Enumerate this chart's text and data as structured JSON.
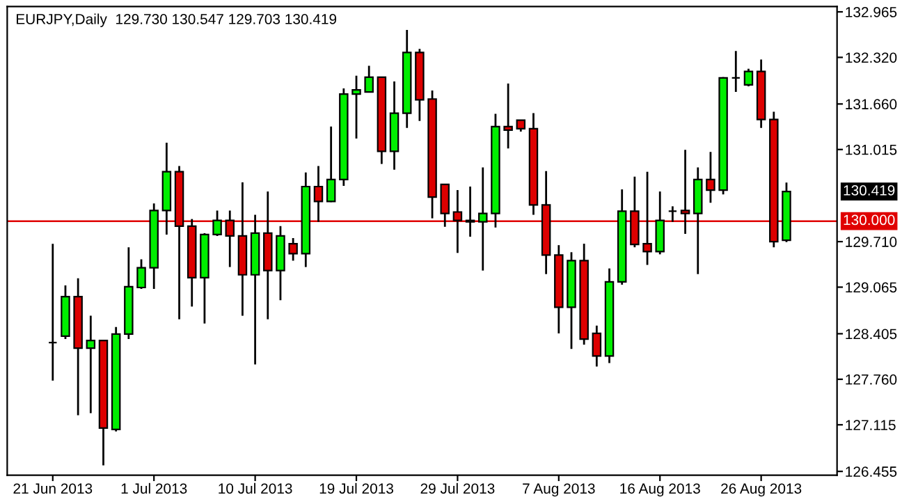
{
  "chart_data": {
    "type": "candlestick",
    "title": "EURJPY,Daily  129.730 130.547 129.703 130.419",
    "categories": [
      "21 Jun 2013",
      null,
      null,
      null,
      null,
      null,
      null,
      null,
      "1 Jul 2013",
      null,
      null,
      null,
      null,
      null,
      null,
      null,
      "10 Jul 2013",
      null,
      null,
      null,
      null,
      null,
      null,
      null,
      "19 Jul 2013",
      null,
      null,
      null,
      null,
      null,
      null,
      null,
      "29 Jul 2013",
      null,
      null,
      null,
      null,
      null,
      null,
      null,
      "7 Aug 2013",
      null,
      null,
      null,
      null,
      null,
      null,
      null,
      "16 Aug 2013",
      null,
      null,
      null,
      null,
      null,
      null,
      null,
      "26 Aug 2013",
      null,
      null
    ],
    "ohlc": [
      [
        128.28,
        129.68,
        127.74,
        128.28
      ],
      [
        128.37,
        129.09,
        128.33,
        128.93
      ],
      [
        128.93,
        129.19,
        127.25,
        128.2
      ],
      [
        128.2,
        128.66,
        127.28,
        128.31
      ],
      [
        128.31,
        128.31,
        126.54,
        127.07
      ],
      [
        127.05,
        128.5,
        127.02,
        128.4
      ],
      [
        128.4,
        129.63,
        128.33,
        129.07
      ],
      [
        129.06,
        129.46,
        129.04,
        129.34
      ],
      [
        129.34,
        130.25,
        129.04,
        130.15
      ],
      [
        130.15,
        131.11,
        129.81,
        130.7
      ],
      [
        130.7,
        130.78,
        128.61,
        129.93
      ],
      [
        129.93,
        130.03,
        128.79,
        129.2
      ],
      [
        129.2,
        129.83,
        128.55,
        129.81
      ],
      [
        129.81,
        130.15,
        129.79,
        130.01
      ],
      [
        130.01,
        130.15,
        129.35,
        129.79
      ],
      [
        129.79,
        130.55,
        128.66,
        129.24
      ],
      [
        129.24,
        130.09,
        127.97,
        129.83
      ],
      [
        129.83,
        130.42,
        128.61,
        129.3
      ],
      [
        129.3,
        129.93,
        128.88,
        129.79
      ],
      [
        129.68,
        129.76,
        129.44,
        129.54
      ],
      [
        129.54,
        130.69,
        129.35,
        130.49
      ],
      [
        130.49,
        130.78,
        129.99,
        130.28
      ],
      [
        130.28,
        131.34,
        130.27,
        130.59
      ],
      [
        130.59,
        131.88,
        130.5,
        131.8
      ],
      [
        131.8,
        132.06,
        131.17,
        131.86
      ],
      [
        131.83,
        132.2,
        131.82,
        132.04
      ],
      [
        132.04,
        132.04,
        130.81,
        130.99
      ],
      [
        130.99,
        131.98,
        130.73,
        131.53
      ],
      [
        131.53,
        132.71,
        131.32,
        132.39
      ],
      [
        132.39,
        132.44,
        131.42,
        131.72
      ],
      [
        131.73,
        131.85,
        130.04,
        130.34
      ],
      [
        130.52,
        130.52,
        129.92,
        130.11
      ],
      [
        130.13,
        130.44,
        129.55,
        130.01
      ],
      [
        130.01,
        130.49,
        129.78,
        129.99
      ],
      [
        129.99,
        130.76,
        129.3,
        130.11
      ],
      [
        130.11,
        131.52,
        129.91,
        131.34
      ],
      [
        131.34,
        131.95,
        131.03,
        131.29
      ],
      [
        131.43,
        131.43,
        131.27,
        131.31
      ],
      [
        131.31,
        131.53,
        130.09,
        130.23
      ],
      [
        130.23,
        130.71,
        129.25,
        129.52
      ],
      [
        129.52,
        129.66,
        128.41,
        128.78
      ],
      [
        128.78,
        129.56,
        128.19,
        129.44
      ],
      [
        129.44,
        129.68,
        128.25,
        128.33
      ],
      [
        128.41,
        128.52,
        127.94,
        128.09
      ],
      [
        128.09,
        129.33,
        127.99,
        129.14
      ],
      [
        129.14,
        130.45,
        129.1,
        130.14
      ],
      [
        130.14,
        130.63,
        129.63,
        129.67
      ],
      [
        129.68,
        130.7,
        129.38,
        129.57
      ],
      [
        129.57,
        130.42,
        129.53,
        130.01
      ],
      [
        130.14,
        130.21,
        129.99,
        130.14
      ],
      [
        130.15,
        131.01,
        129.82,
        130.11
      ],
      [
        130.11,
        130.76,
        129.25,
        130.59
      ],
      [
        130.59,
        130.98,
        130.26,
        130.44
      ],
      [
        130.44,
        132.04,
        130.38,
        132.03
      ],
      [
        132.03,
        132.41,
        131.83,
        132.03
      ],
      [
        131.93,
        132.16,
        131.91,
        132.12
      ],
      [
        132.12,
        132.29,
        131.32,
        131.44
      ],
      [
        131.44,
        131.55,
        129.63,
        129.71
      ],
      [
        129.73,
        130.547,
        129.703,
        130.419
      ]
    ],
    "colors": [
      "#000000",
      "#00ee00",
      "#dd0000",
      "#00ee00",
      "#dd0000",
      "#00ee00",
      "#00ee00",
      "#00ee00",
      "#00ee00",
      "#00ee00",
      "#dd0000",
      "#dd0000",
      "#00ee00",
      "#00ee00",
      "#dd0000",
      "#dd0000",
      "#00ee00",
      "#dd0000",
      "#00ee00",
      "#dd0000",
      "#00ee00",
      "#dd0000",
      "#00ee00",
      "#00ee00",
      "#00ee00",
      "#00ee00",
      "#dd0000",
      "#00ee00",
      "#00ee00",
      "#dd0000",
      "#dd0000",
      "#dd0000",
      "#dd0000",
      "#dd0000",
      "#00ee00",
      "#00ee00",
      "#dd0000",
      "#dd0000",
      "#dd0000",
      "#dd0000",
      "#dd0000",
      "#00ee00",
      "#dd0000",
      "#dd0000",
      "#00ee00",
      "#00ee00",
      "#dd0000",
      "#dd0000",
      "#00ee00",
      "#000000",
      "#dd0000",
      "#00ee00",
      "#dd0000",
      "#00ee00",
      "#000000",
      "#00ee00",
      "#dd0000",
      "#dd0000",
      "#00ee00"
    ],
    "ylim": [
      126.4,
      133.04
    ],
    "yticks": [
      {
        "value": 132.965,
        "label": "132.965"
      },
      {
        "value": 132.32,
        "label": "132.320"
      },
      {
        "value": 131.66,
        "label": "131.660"
      },
      {
        "value": 131.015,
        "label": "131.015"
      },
      {
        "value": 129.71,
        "label": "129.710"
      },
      {
        "value": 129.065,
        "label": "129.065"
      },
      {
        "value": 128.405,
        "label": "128.405"
      },
      {
        "value": 127.76,
        "label": "127.760"
      },
      {
        "value": 127.115,
        "label": "127.115"
      },
      {
        "value": 126.455,
        "label": "126.455"
      }
    ],
    "ref_lines": [
      {
        "axis": "y",
        "value": 130.0,
        "label": "130.000",
        "color": "#e00000"
      }
    ],
    "annotations": [
      "130.419"
    ],
    "grid": false
  }
}
